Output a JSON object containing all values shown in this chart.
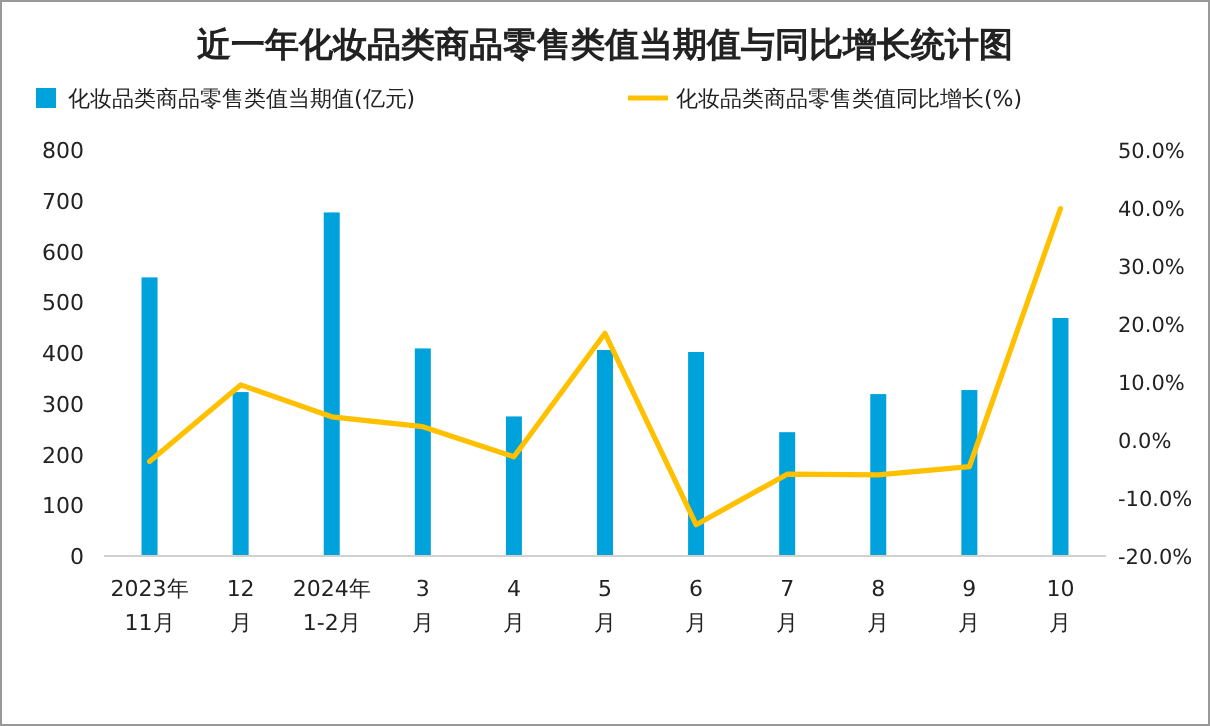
{
  "chart_data": {
    "type": "bar",
    "title": "近一年化妆品类商品零售类值当期值与同比增长统计图",
    "categories": [
      "2023年11月",
      "12月",
      "2024年1-2月",
      "3月",
      "4月",
      "5月",
      "6月",
      "7月",
      "8月",
      "9月",
      "10月"
    ],
    "series": [
      {
        "name": "化妆品类商品零售类值当期值(亿元)",
        "color": "#00a2dc",
        "values": [
          549,
          323,
          677,
          409,
          275,
          406,
          402,
          244,
          319,
          327,
          469
        ]
      },
      {
        "name": "化妆品类商品零售类值同比增长(%)",
        "type": "line",
        "axis": "y2",
        "color": "#ffc000",
        "values": [
          -3.7,
          9.5,
          4.0,
          2.3,
          -2.9,
          18.4,
          -14.6,
          -5.9,
          -6.0,
          -4.6,
          39.9
        ]
      }
    ],
    "ylim": [
      0,
      800
    ],
    "yticks": [
      0,
      100,
      200,
      300,
      400,
      500,
      600,
      700,
      800
    ],
    "y2lim": [
      -20,
      50
    ],
    "y2ticks": [
      {
        "value": -20,
        "label": "-20.0%"
      },
      {
        "value": -10,
        "label": "-10.0%"
      },
      {
        "value": 0,
        "label": "0.0%"
      },
      {
        "value": 10,
        "label": "10.0%"
      },
      {
        "value": 20,
        "label": "20.0%"
      },
      {
        "value": 30,
        "label": "30.0%"
      },
      {
        "value": 40,
        "label": "40.0%"
      },
      {
        "value": 50,
        "label": "50.0%"
      }
    ],
    "legend": "top",
    "marker": "none",
    "line_style": "solid"
  }
}
